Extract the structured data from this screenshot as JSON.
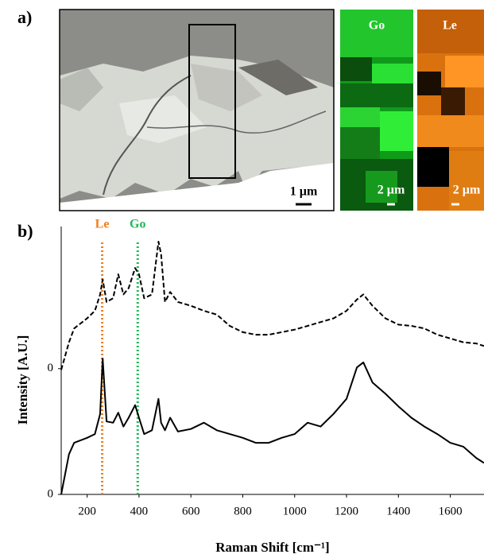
{
  "chart_data": {
    "type": "line",
    "panel_labels": [
      "a)",
      "b)"
    ],
    "images": [
      {
        "scale": "1 µm"
      },
      {
        "label": "Go",
        "scale": "2 µm"
      },
      {
        "label": "Le",
        "scale": "2 µm"
      }
    ],
    "x_label": "Raman Shift [cm⁻¹]",
    "y_label": "Intensity [A.U.]",
    "x": [
      100,
      130,
      150,
      200,
      230,
      250,
      260,
      275,
      300,
      320,
      340,
      360,
      385,
      400,
      420,
      450,
      475,
      485,
      500,
      520,
      550,
      600,
      650,
      700,
      750,
      800,
      850,
      900,
      950,
      1000,
      1050,
      1100,
      1150,
      1200,
      1240,
      1265,
      1300,
      1350,
      1400,
      1450,
      1500,
      1550,
      1600,
      1650,
      1700,
      1730
    ],
    "series": [
      {
        "color": "#000000",
        "dash": true,
        "values": [
          0.99,
          1.21,
          1.32,
          1.4,
          1.46,
          1.59,
          1.71,
          1.53,
          1.56,
          1.75,
          1.59,
          1.64,
          1.8,
          1.75,
          1.56,
          1.59,
          2.01,
          1.91,
          1.53,
          1.61,
          1.53,
          1.5,
          1.46,
          1.43,
          1.34,
          1.29,
          1.27,
          1.27,
          1.29,
          1.31,
          1.34,
          1.37,
          1.4,
          1.46,
          1.55,
          1.59,
          1.5,
          1.4,
          1.35,
          1.34,
          1.32,
          1.27,
          1.24,
          1.21,
          1.2,
          1.18
        ]
      },
      {
        "color": "#000000",
        "dash": false,
        "values": [
          0,
          0.32,
          0.41,
          0.45,
          0.48,
          0.64,
          1.08,
          0.58,
          0.57,
          0.65,
          0.54,
          0.61,
          0.71,
          0.61,
          0.48,
          0.51,
          0.76,
          0.57,
          0.51,
          0.61,
          0.5,
          0.52,
          0.57,
          0.51,
          0.48,
          0.45,
          0.41,
          0.41,
          0.45,
          0.48,
          0.57,
          0.54,
          0.64,
          0.76,
          1.01,
          1.05,
          0.89,
          0.8,
          0.7,
          0.61,
          0.54,
          0.48,
          0.41,
          0.38,
          0.29,
          0.25
        ]
      }
    ],
    "markers": [
      {
        "label": "Le",
        "x": 258,
        "color": "#f07f1a"
      },
      {
        "label": "Go",
        "x": 395,
        "color": "#1db954"
      }
    ],
    "xlim": [
      100,
      1730
    ],
    "ylim": [
      0,
      2.13
    ],
    "xticks": [
      200,
      400,
      600,
      800,
      1000,
      1200,
      1400,
      1600
    ],
    "yticks": [
      {
        "value": 0,
        "label": "0"
      },
      {
        "value": 1,
        "label": "0"
      }
    ]
  }
}
